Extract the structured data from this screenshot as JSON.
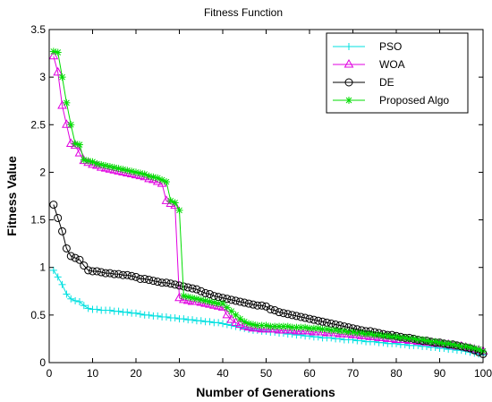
{
  "chart_data": {
    "type": "line",
    "title": "Fitness Function",
    "xlabel": "Number of Generations",
    "ylabel": "Fitness Value",
    "xlim": [
      0,
      100
    ],
    "ylim": [
      0,
      3.5
    ],
    "xticks": [
      "0",
      "10",
      "20",
      "30",
      "40",
      "50",
      "60",
      "70",
      "80",
      "90",
      "100"
    ],
    "yticks": [
      "0",
      "0.5",
      "1",
      "1.5",
      "2",
      "2.5",
      "3",
      "3.5"
    ],
    "grid": false,
    "legend_position": "top-right",
    "series": [
      {
        "name": "PSO",
        "color": "#00e0e0",
        "marker": "plus",
        "x": [
          1,
          2,
          3,
          4,
          5,
          6,
          7,
          8,
          9,
          10,
          11,
          12,
          13,
          14,
          15,
          16,
          17,
          18,
          19,
          20,
          21,
          22,
          23,
          24,
          25,
          26,
          27,
          28,
          29,
          30,
          31,
          32,
          33,
          34,
          35,
          36,
          37,
          38,
          39,
          40,
          41,
          42,
          43,
          44,
          45,
          46,
          47,
          48,
          49,
          50,
          51,
          52,
          53,
          54,
          55,
          56,
          57,
          58,
          59,
          60,
          61,
          62,
          63,
          64,
          65,
          66,
          67,
          68,
          69,
          70,
          71,
          72,
          73,
          74,
          75,
          76,
          77,
          78,
          79,
          80,
          81,
          82,
          83,
          84,
          85,
          86,
          87,
          88,
          89,
          90,
          91,
          92,
          93,
          94,
          95,
          96,
          97,
          98,
          99,
          100
        ],
        "values": [
          0.97,
          0.9,
          0.82,
          0.72,
          0.67,
          0.65,
          0.64,
          0.6,
          0.57,
          0.56,
          0.56,
          0.55,
          0.55,
          0.55,
          0.54,
          0.54,
          0.53,
          0.53,
          0.52,
          0.52,
          0.51,
          0.5,
          0.5,
          0.49,
          0.49,
          0.48,
          0.48,
          0.47,
          0.47,
          0.46,
          0.46,
          0.45,
          0.45,
          0.44,
          0.44,
          0.43,
          0.43,
          0.42,
          0.42,
          0.41,
          0.4,
          0.39,
          0.38,
          0.37,
          0.36,
          0.35,
          0.34,
          0.34,
          0.33,
          0.33,
          0.32,
          0.32,
          0.31,
          0.31,
          0.3,
          0.3,
          0.29,
          0.29,
          0.28,
          0.28,
          0.27,
          0.27,
          0.26,
          0.26,
          0.26,
          0.25,
          0.25,
          0.24,
          0.24,
          0.24,
          0.23,
          0.23,
          0.22,
          0.22,
          0.22,
          0.21,
          0.21,
          0.2,
          0.2,
          0.2,
          0.19,
          0.19,
          0.18,
          0.18,
          0.18,
          0.17,
          0.17,
          0.16,
          0.16,
          0.15,
          0.15,
          0.14,
          0.14,
          0.13,
          0.13,
          0.12,
          0.11,
          0.1,
          0.09,
          0.08
        ]
      },
      {
        "name": "WOA",
        "color": "#e000e0",
        "marker": "triangle",
        "x": [
          1,
          2,
          3,
          4,
          5,
          6,
          7,
          8,
          9,
          10,
          11,
          12,
          13,
          14,
          15,
          16,
          17,
          18,
          19,
          20,
          21,
          22,
          23,
          24,
          25,
          26,
          27,
          28,
          29,
          30,
          31,
          32,
          33,
          34,
          35,
          36,
          37,
          38,
          39,
          40,
          41,
          42,
          43,
          44,
          45,
          46,
          47,
          48,
          49,
          50,
          51,
          52,
          53,
          54,
          55,
          56,
          57,
          58,
          59,
          60,
          61,
          62,
          63,
          64,
          65,
          66,
          67,
          68,
          69,
          70,
          71,
          72,
          73,
          74,
          75,
          76,
          77,
          78,
          79,
          80,
          81,
          82,
          83,
          84,
          85,
          86,
          87,
          88,
          89,
          90,
          91,
          92,
          93,
          94,
          95,
          96,
          97,
          98,
          99,
          100
        ],
        "values": [
          3.22,
          3.05,
          2.7,
          2.5,
          2.3,
          2.28,
          2.2,
          2.12,
          2.1,
          2.08,
          2.07,
          2.05,
          2.04,
          2.03,
          2.02,
          2.01,
          2.0,
          1.99,
          1.98,
          1.97,
          1.96,
          1.95,
          1.93,
          1.92,
          1.9,
          1.88,
          1.7,
          1.67,
          1.65,
          0.68,
          0.66,
          0.65,
          0.64,
          0.64,
          0.63,
          0.62,
          0.61,
          0.6,
          0.59,
          0.58,
          0.5,
          0.45,
          0.42,
          0.4,
          0.38,
          0.37,
          0.36,
          0.36,
          0.35,
          0.35,
          0.35,
          0.35,
          0.34,
          0.34,
          0.34,
          0.34,
          0.33,
          0.33,
          0.33,
          0.33,
          0.32,
          0.32,
          0.32,
          0.31,
          0.31,
          0.31,
          0.3,
          0.3,
          0.3,
          0.29,
          0.29,
          0.28,
          0.28,
          0.27,
          0.27,
          0.26,
          0.26,
          0.25,
          0.25,
          0.24,
          0.24,
          0.24,
          0.23,
          0.23,
          0.22,
          0.22,
          0.21,
          0.21,
          0.2,
          0.2,
          0.19,
          0.19,
          0.18,
          0.17,
          0.17,
          0.16,
          0.15,
          0.14,
          0.13,
          0.12
        ]
      },
      {
        "name": "DE",
        "color": "#000000",
        "marker": "circle",
        "x": [
          1,
          2,
          3,
          4,
          5,
          6,
          7,
          8,
          9,
          10,
          11,
          12,
          13,
          14,
          15,
          16,
          17,
          18,
          19,
          20,
          21,
          22,
          23,
          24,
          25,
          26,
          27,
          28,
          29,
          30,
          31,
          32,
          33,
          34,
          35,
          36,
          37,
          38,
          39,
          40,
          41,
          42,
          43,
          44,
          45,
          46,
          47,
          48,
          49,
          50,
          51,
          52,
          53,
          54,
          55,
          56,
          57,
          58,
          59,
          60,
          61,
          62,
          63,
          64,
          65,
          66,
          67,
          68,
          69,
          70,
          71,
          72,
          73,
          74,
          75,
          76,
          77,
          78,
          79,
          80,
          81,
          82,
          83,
          84,
          85,
          86,
          87,
          88,
          89,
          90,
          91,
          92,
          93,
          94,
          95,
          96,
          97,
          98,
          99,
          100
        ],
        "values": [
          1.66,
          1.52,
          1.38,
          1.2,
          1.12,
          1.1,
          1.08,
          1.02,
          0.97,
          0.96,
          0.96,
          0.95,
          0.94,
          0.94,
          0.93,
          0.93,
          0.92,
          0.92,
          0.91,
          0.9,
          0.88,
          0.88,
          0.87,
          0.86,
          0.85,
          0.84,
          0.84,
          0.83,
          0.82,
          0.81,
          0.8,
          0.79,
          0.78,
          0.77,
          0.75,
          0.73,
          0.72,
          0.7,
          0.69,
          0.68,
          0.67,
          0.66,
          0.65,
          0.64,
          0.63,
          0.62,
          0.61,
          0.6,
          0.6,
          0.59,
          0.56,
          0.55,
          0.53,
          0.52,
          0.51,
          0.5,
          0.49,
          0.48,
          0.47,
          0.46,
          0.45,
          0.44,
          0.43,
          0.42,
          0.41,
          0.4,
          0.39,
          0.38,
          0.37,
          0.36,
          0.35,
          0.34,
          0.33,
          0.33,
          0.32,
          0.31,
          0.3,
          0.29,
          0.29,
          0.28,
          0.27,
          0.26,
          0.26,
          0.25,
          0.24,
          0.23,
          0.23,
          0.22,
          0.21,
          0.21,
          0.2,
          0.19,
          0.19,
          0.18,
          0.17,
          0.16,
          0.15,
          0.13,
          0.11,
          0.09
        ]
      },
      {
        "name": "Proposed Algo",
        "color": "#00dd00",
        "marker": "star",
        "x": [
          1,
          2,
          3,
          4,
          5,
          6,
          7,
          8,
          9,
          10,
          11,
          12,
          13,
          14,
          15,
          16,
          17,
          18,
          19,
          20,
          21,
          22,
          23,
          24,
          25,
          26,
          27,
          28,
          29,
          30,
          31,
          32,
          33,
          34,
          35,
          36,
          37,
          38,
          39,
          40,
          41,
          42,
          43,
          44,
          45,
          46,
          47,
          48,
          49,
          50,
          51,
          52,
          53,
          54,
          55,
          56,
          57,
          58,
          59,
          60,
          61,
          62,
          63,
          64,
          65,
          66,
          67,
          68,
          69,
          70,
          71,
          72,
          73,
          74,
          75,
          76,
          77,
          78,
          79,
          80,
          81,
          82,
          83,
          84,
          85,
          86,
          87,
          88,
          89,
          90,
          91,
          92,
          93,
          94,
          95,
          96,
          97,
          98,
          99,
          100
        ],
        "values": [
          3.27,
          3.26,
          3.0,
          2.73,
          2.5,
          2.3,
          2.29,
          2.13,
          2.12,
          2.11,
          2.09,
          2.08,
          2.07,
          2.06,
          2.05,
          2.04,
          2.03,
          2.02,
          2.01,
          2.0,
          1.99,
          1.98,
          1.96,
          1.95,
          1.94,
          1.92,
          1.9,
          1.7,
          1.68,
          1.6,
          0.7,
          0.69,
          0.68,
          0.67,
          0.66,
          0.65,
          0.64,
          0.63,
          0.62,
          0.62,
          0.58,
          0.54,
          0.5,
          0.46,
          0.43,
          0.41,
          0.4,
          0.39,
          0.39,
          0.39,
          0.38,
          0.38,
          0.38,
          0.38,
          0.38,
          0.37,
          0.37,
          0.37,
          0.37,
          0.36,
          0.36,
          0.36,
          0.35,
          0.35,
          0.34,
          0.34,
          0.33,
          0.33,
          0.32,
          0.32,
          0.31,
          0.31,
          0.3,
          0.3,
          0.29,
          0.29,
          0.28,
          0.28,
          0.27,
          0.27,
          0.26,
          0.26,
          0.25,
          0.25,
          0.24,
          0.24,
          0.23,
          0.22,
          0.22,
          0.21,
          0.2,
          0.2,
          0.19,
          0.18,
          0.17,
          0.17,
          0.16,
          0.15,
          0.14,
          0.12
        ]
      }
    ]
  }
}
